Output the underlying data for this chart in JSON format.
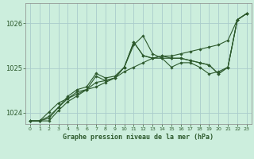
{
  "title": "Graphe pression niveau de la mer (hPa)",
  "bg_color": "#cceedd",
  "grid_color": "#aacccc",
  "line_color": "#2d5a2d",
  "xlim": [
    -0.5,
    23.5
  ],
  "ylim": [
    1023.75,
    1026.45
  ],
  "yticks": [
    1024,
    1025,
    1026
  ],
  "xticks": [
    0,
    1,
    2,
    3,
    4,
    5,
    6,
    7,
    8,
    9,
    10,
    11,
    12,
    13,
    14,
    15,
    16,
    17,
    18,
    19,
    20,
    21,
    22,
    23
  ],
  "series": [
    [
      1023.82,
      1023.82,
      1023.82,
      1024.05,
      1024.25,
      1024.38,
      1024.52,
      1024.58,
      1024.68,
      1024.78,
      1024.92,
      1025.02,
      1025.12,
      1025.22,
      1025.27,
      1025.27,
      1025.32,
      1025.37,
      1025.42,
      1025.47,
      1025.52,
      1025.62,
      1026.08,
      1026.22
    ],
    [
      1023.82,
      1023.82,
      1023.88,
      1024.12,
      1024.32,
      1024.42,
      1024.52,
      1024.68,
      1024.72,
      1024.78,
      1025.02,
      1025.52,
      1025.72,
      1025.32,
      1025.22,
      1025.02,
      1025.12,
      1025.12,
      1025.02,
      1024.87,
      1024.92,
      1025.02,
      1026.08,
      1026.22
    ],
    [
      1023.82,
      1023.82,
      1023.92,
      1024.12,
      1024.37,
      1024.52,
      1024.58,
      1024.88,
      1024.78,
      1024.82,
      1025.02,
      1025.58,
      1025.28,
      1025.22,
      1025.27,
      1025.22,
      1025.22,
      1025.17,
      1025.12,
      1025.07,
      1024.87,
      1025.02,
      1026.08,
      1026.22
    ],
    [
      1023.82,
      1023.82,
      1024.02,
      1024.22,
      1024.32,
      1024.47,
      1024.52,
      1024.82,
      1024.72,
      1024.78,
      1025.02,
      1025.58,
      1025.28,
      1025.22,
      1025.22,
      1025.22,
      1025.22,
      1025.17,
      1025.12,
      1025.07,
      1024.87,
      1025.02,
      1026.08,
      1026.22
    ]
  ]
}
